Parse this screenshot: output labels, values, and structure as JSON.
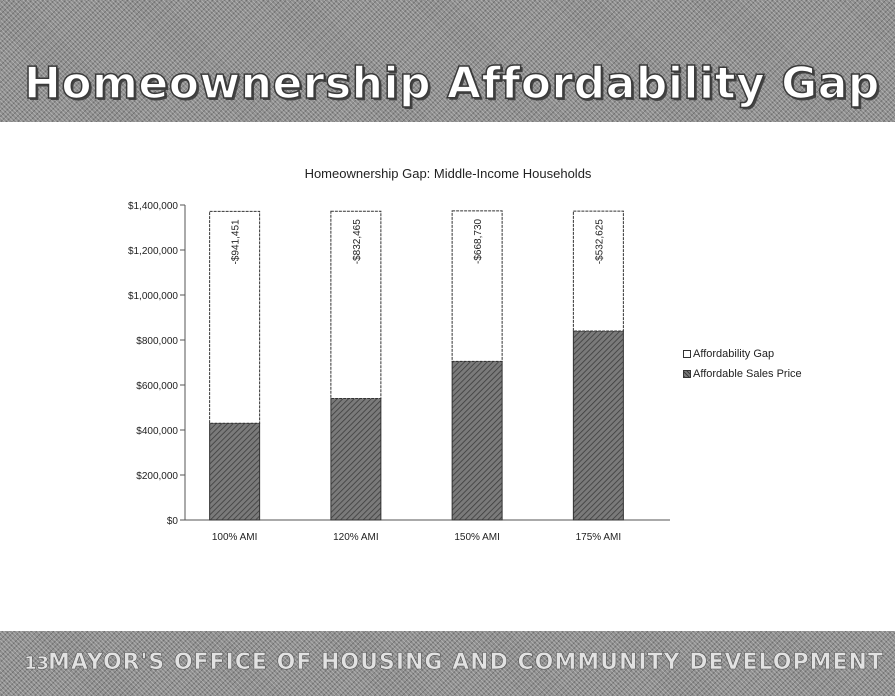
{
  "slide": {
    "title": "Homeownership Affordability Gap",
    "footer": "MAYOR'S OFFICE OF HOUSING AND COMMUNITY DEVELOPMENT",
    "page_number": "13"
  },
  "chart_data": {
    "type": "bar",
    "stacked": true,
    "title": "Homeownership Gap: Middle-Income Households",
    "xlabel": "",
    "ylabel": "",
    "categories": [
      "100% AMI",
      "120% AMI",
      "150% AMI",
      "175% AMI"
    ],
    "series": [
      {
        "name": "Affordable Sales Price",
        "values": [
          430000,
          540000,
          705000,
          840000
        ],
        "color": "#6e6e6e"
      },
      {
        "name": "Affordability Gap",
        "values": [
          941451,
          832465,
          668730,
          532625
        ],
        "color": "#ffffff"
      }
    ],
    "gap_labels": [
      "-$941,451",
      "-$832,465",
      "-$668,730",
      "-$532,625"
    ],
    "ylim": [
      0,
      1400000
    ],
    "yticks": [
      0,
      200000,
      400000,
      600000,
      800000,
      1000000,
      1200000,
      1400000
    ],
    "ytick_labels": [
      "$0",
      "$200,000",
      "$400,000",
      "$600,000",
      "$800,000",
      "$1,000,000",
      "$1,200,000",
      "$1,400,000"
    ],
    "grid": false,
    "legend_position": "right"
  }
}
